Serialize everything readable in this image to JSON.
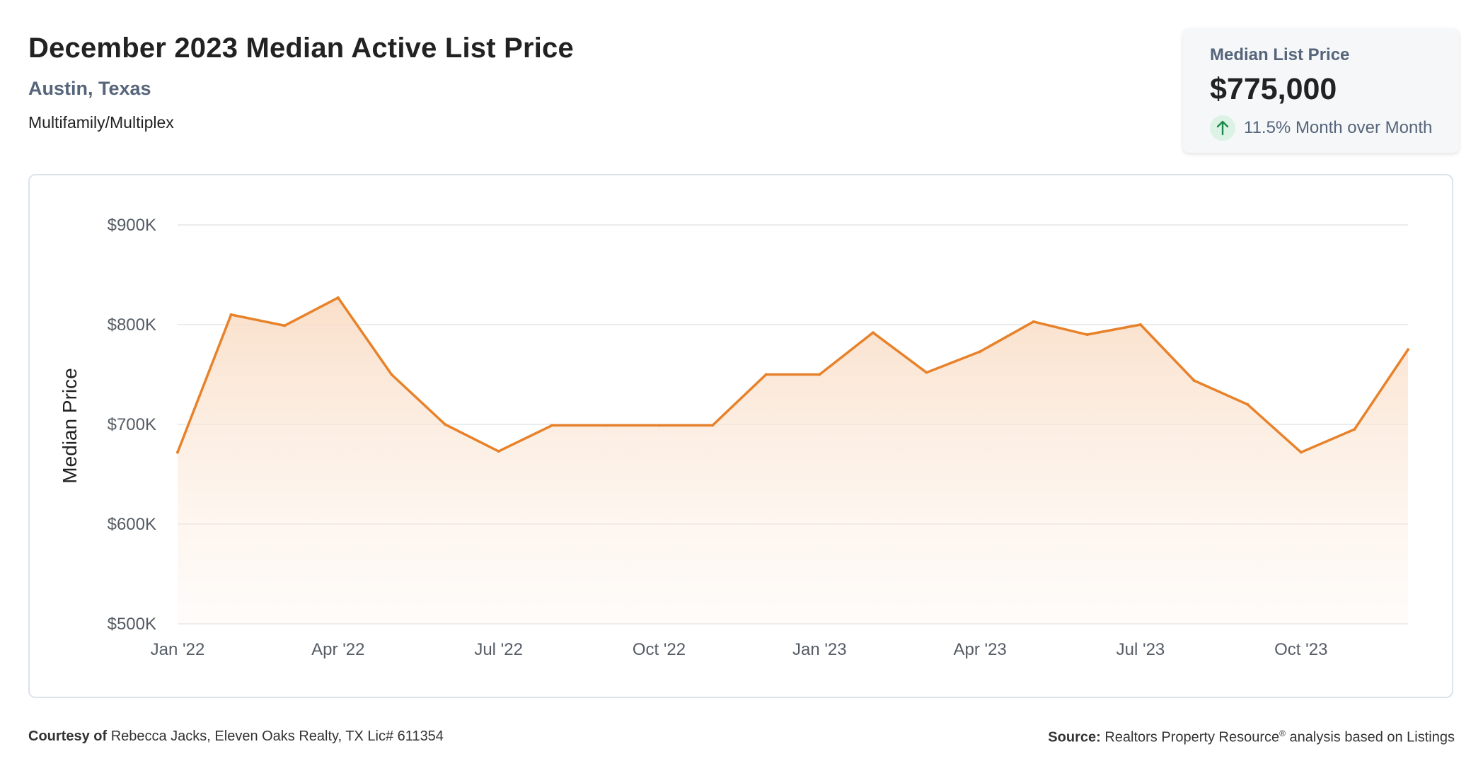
{
  "header": {
    "title": "December 2023 Median Active List Price",
    "location": "Austin, Texas",
    "property_type": "Multifamily/Multiplex"
  },
  "summary_card": {
    "label": "Median List Price",
    "value": "$775,000",
    "change_text": "11.5% Month over Month",
    "change_icon": "arrow-up-icon",
    "change_color": "#1a8a4a",
    "change_bg": "#dcf2e4"
  },
  "footer": {
    "courtesy_label": "Courtesy of",
    "courtesy_text": "Rebecca Jacks, Eleven Oaks Realty, TX Lic# 611354",
    "source_label": "Source:",
    "source_name": "Realtors Property Resource",
    "source_mark": "®",
    "source_suffix": "analysis based on Listings"
  },
  "colors": {
    "line": "#e8822a",
    "fill_top": "#f9dcc4",
    "grid": "#e3e5e8"
  },
  "chart_data": {
    "type": "area",
    "title": "",
    "xlabel": "",
    "ylabel": "Median Price",
    "ylim": [
      500000,
      900000
    ],
    "y_ticks": [
      500000,
      600000,
      700000,
      800000,
      900000
    ],
    "y_tick_labels": [
      "$500K",
      "$600K",
      "$700K",
      "$800K",
      "$900K"
    ],
    "x_tick_labels": [
      "Jan '22",
      "Apr '22",
      "Jul '22",
      "Oct '22",
      "Jan '23",
      "Apr '23",
      "Jul '23",
      "Oct '23"
    ],
    "x_tick_indices": [
      0,
      3,
      6,
      9,
      12,
      15,
      18,
      21
    ],
    "x": [
      "2022-01",
      "2022-02",
      "2022-03",
      "2022-04",
      "2022-05",
      "2022-06",
      "2022-07",
      "2022-08",
      "2022-09",
      "2022-10",
      "2022-11",
      "2022-12",
      "2023-01",
      "2023-02",
      "2023-03",
      "2023-04",
      "2023-05",
      "2023-06",
      "2023-07",
      "2023-08",
      "2023-09",
      "2023-10",
      "2023-11",
      "2023-12"
    ],
    "series": [
      {
        "values": [
          672000,
          810000,
          799000,
          827000,
          750000,
          700000,
          673000,
          699000,
          699000,
          699000,
          699000,
          750000,
          750000,
          792000,
          752000,
          773000,
          803000,
          790000,
          800000,
          744000,
          720000,
          672000,
          695000,
          775000
        ]
      }
    ],
    "grid": true,
    "legend": "none"
  }
}
